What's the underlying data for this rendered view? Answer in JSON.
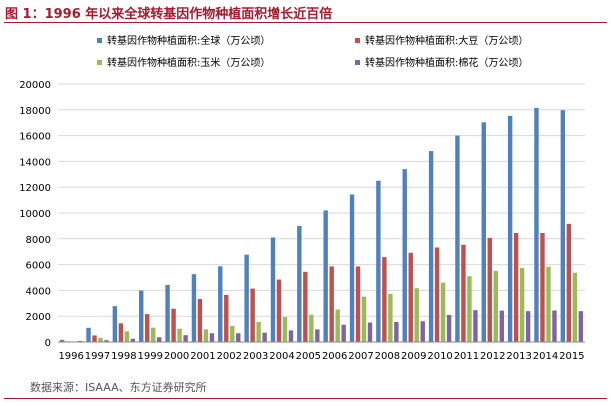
{
  "title": "图 1：1996 年以来全球转基因作物种植面积增长近百倍",
  "source": "数据来源：ISAAA、东方证券研究所",
  "chart_data": {
    "type": "bar",
    "categories": [
      "1996",
      "1997",
      "1998",
      "1999",
      "2000",
      "2001",
      "2002",
      "2003",
      "2004",
      "2005",
      "2006",
      "2007",
      "2008",
      "2009",
      "2010",
      "2011",
      "2012",
      "2013",
      "2014",
      "2015"
    ],
    "series": [
      {
        "name": "转基因作物种植面积:全球（万公顷）",
        "color": "#4f81bd",
        "values": [
          170,
          1100,
          2780,
          3990,
          4420,
          5260,
          5870,
          6770,
          8100,
          9000,
          10200,
          11430,
          12500,
          13400,
          14800,
          16000,
          17030,
          17530,
          18150,
          17970
        ]
      },
      {
        "name": "转基因作物种植面积:大豆（万公顷）",
        "color": "#c0504d",
        "values": [
          50,
          510,
          1450,
          2160,
          2580,
          3330,
          3650,
          4140,
          4840,
          5440,
          5860,
          5860,
          6580,
          6920,
          7330,
          7540,
          8070,
          8450,
          8450,
          9160
        ]
      },
      {
        "name": "转基因作物种植面积:玉米（万公顷）",
        "color": "#9bbb59",
        "values": [
          30,
          320,
          830,
          1110,
          1030,
          980,
          1240,
          1550,
          1930,
          2120,
          2520,
          3520,
          3730,
          4170,
          4600,
          5100,
          5510,
          5740,
          5840,
          5370
        ]
      },
      {
        "name": "转基因作物种植面积:棉花（万公顷）",
        "color": "#8064a2",
        "values": [
          80,
          140,
          250,
          370,
          530,
          680,
          680,
          720,
          900,
          980,
          1340,
          1510,
          1550,
          1610,
          2100,
          2470,
          2430,
          2390,
          2440,
          2390
        ]
      }
    ],
    "ylim": [
      0,
      20000
    ],
    "yticks": [
      0,
      2000,
      4000,
      6000,
      8000,
      10000,
      12000,
      14000,
      16000,
      18000,
      20000
    ],
    "grid": true,
    "legend": "top"
  }
}
